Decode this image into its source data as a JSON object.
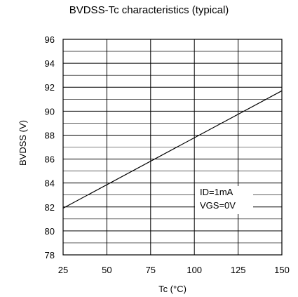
{
  "chart_data": {
    "type": "line",
    "title": "BVDSS-Tc characteristics (typical)",
    "xlabel": "Tc (°C)",
    "ylabel": "BVDSS (V)",
    "xlim": [
      25,
      150
    ],
    "ylim": [
      78,
      96
    ],
    "xticks": [
      25,
      50,
      75,
      100,
      125,
      150
    ],
    "yticks": [
      78,
      80,
      82,
      84,
      86,
      88,
      90,
      92,
      94,
      96
    ],
    "grid": true,
    "series": [
      {
        "x": [
          25,
          150
        ],
        "y": [
          81.9,
          91.7
        ]
      }
    ],
    "annotations": [
      "ID=1mA",
      "VGS=0V"
    ]
  }
}
